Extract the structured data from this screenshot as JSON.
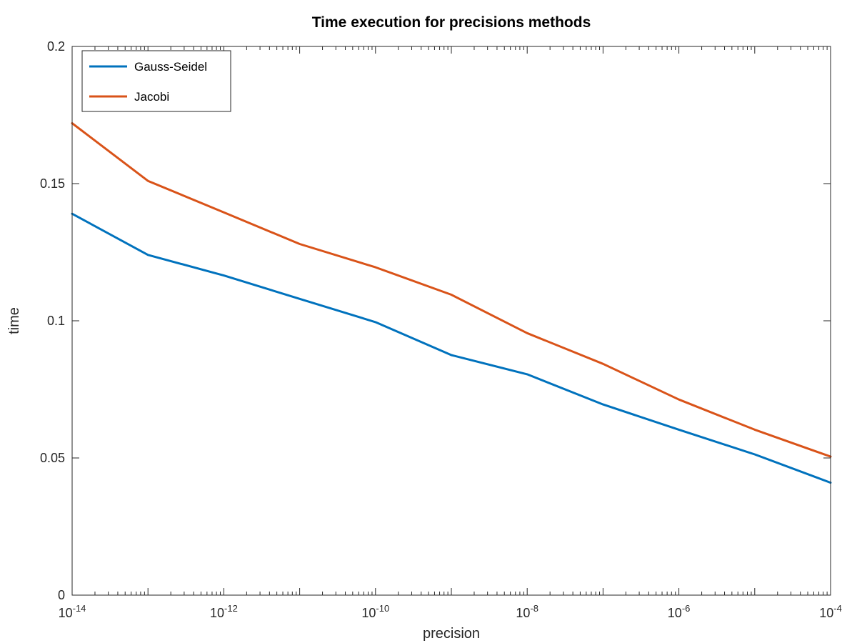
{
  "chart_data": {
    "type": "line",
    "title": "Time execution for precisions methods",
    "xlabel": "precision",
    "ylabel": "time",
    "xscale": "log",
    "xlim": [
      1e-14,
      0.0001
    ],
    "ylim": [
      0,
      0.2
    ],
    "grid": false,
    "legend_position": "top-left",
    "x": [
      1e-14,
      1e-13,
      1e-12,
      1e-11,
      1e-10,
      1e-09,
      1e-08,
      1e-07,
      1e-06,
      1e-05,
      0.0001
    ],
    "series": [
      {
        "name": "Gauss-Seidel",
        "color": "#0072bd",
        "values": [
          0.139,
          0.124,
          0.1165,
          0.108,
          0.0995,
          0.0875,
          0.0805,
          0.0695,
          0.0603,
          0.0513,
          0.041
        ]
      },
      {
        "name": "Jacobi",
        "color": "#d95319",
        "values": [
          0.172,
          0.151,
          0.1395,
          0.128,
          0.1195,
          0.1095,
          0.0955,
          0.0843,
          0.0713,
          0.0603,
          0.0505
        ]
      }
    ],
    "x_ticks": [
      {
        "value": 1e-14,
        "base": "10",
        "exp": "-14"
      },
      {
        "value": 1e-12,
        "base": "10",
        "exp": "-12"
      },
      {
        "value": 1e-10,
        "base": "10",
        "exp": "-10"
      },
      {
        "value": 1e-08,
        "base": "10",
        "exp": "-8"
      },
      {
        "value": 1e-06,
        "base": "10",
        "exp": "-6"
      },
      {
        "value": 0.0001,
        "base": "10",
        "exp": "-4"
      }
    ],
    "y_ticks": [
      {
        "value": 0,
        "label": "0"
      },
      {
        "value": 0.05,
        "label": "0.05"
      },
      {
        "value": 0.1,
        "label": "0.1"
      },
      {
        "value": 0.15,
        "label": "0.15"
      },
      {
        "value": 0.2,
        "label": "0.2"
      }
    ]
  }
}
